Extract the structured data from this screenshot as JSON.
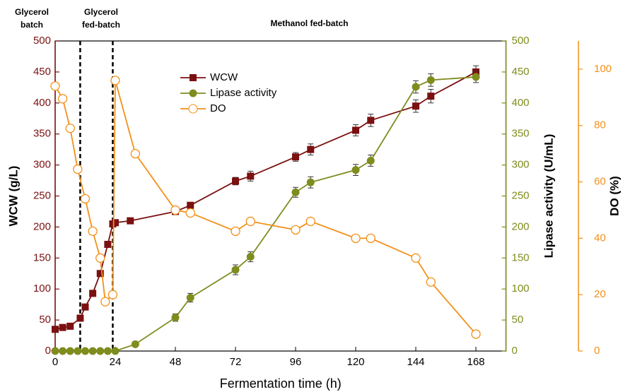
{
  "chart_data": {
    "type": "line",
    "xlabel": "Fermentation time (h)",
    "xlim": [
      0,
      180
    ],
    "xticks": [
      0,
      24,
      48,
      72,
      96,
      120,
      144,
      168
    ],
    "ylabel": "WCW (g/L)",
    "ylim": [
      0,
      500
    ],
    "yticks": [
      0,
      50,
      100,
      150,
      200,
      250,
      300,
      350,
      400,
      450,
      500
    ],
    "y2label": "Lipase activity (U/mL)",
    "y2lim": [
      0,
      500
    ],
    "y2ticks": [
      0,
      50,
      100,
      150,
      200,
      250,
      300,
      350,
      400,
      450,
      500
    ],
    "y3label": "DO (%)",
    "y3lim": [
      0,
      110
    ],
    "y3ticks": [
      0,
      20,
      40,
      60,
      80,
      100
    ],
    "legend": "upper center",
    "phases": [
      {
        "label": [
          "Glycerol",
          "batch"
        ],
        "start": 0
      },
      {
        "label": [
          "Glycerol",
          "fed-batch"
        ],
        "start": 10
      },
      {
        "label": [
          "Methanol fed-batch"
        ],
        "start": 23
      }
    ],
    "series": [
      {
        "name": "WCW",
        "color": "#7b1010",
        "marker": "square",
        "axis": "y",
        "x": [
          0,
          3,
          6,
          10,
          12,
          15,
          18,
          21,
          23,
          24,
          30,
          48,
          54,
          72,
          78,
          96,
          102,
          120,
          126,
          144,
          150,
          168
        ],
        "values": [
          35,
          38,
          40,
          53,
          71,
          93,
          125,
          172,
          205,
          207,
          210,
          225,
          235,
          274,
          282,
          313,
          325,
          356,
          372,
          395,
          411,
          450
        ],
        "errors": [
          null,
          null,
          null,
          null,
          null,
          null,
          null,
          null,
          null,
          null,
          null,
          null,
          null,
          6,
          8,
          7,
          9,
          9,
          10,
          10,
          11,
          10
        ]
      },
      {
        "name": "Lipase activity",
        "color": "#7f8c1e",
        "marker": "circle",
        "axis": "y2",
        "x": [
          0,
          3,
          6,
          9,
          12,
          15,
          18,
          21,
          24,
          32,
          48,
          54,
          72,
          78,
          96,
          102,
          120,
          126,
          144,
          150,
          168
        ],
        "values": [
          0,
          0,
          0,
          0,
          0,
          0,
          0,
          0,
          0,
          11,
          54,
          86,
          131,
          152,
          256,
          272,
          292,
          307,
          426,
          437,
          442
        ],
        "errors": [
          null,
          null,
          null,
          null,
          null,
          null,
          null,
          null,
          null,
          null,
          6,
          7,
          8,
          8,
          8,
          9,
          9,
          9,
          10,
          10,
          9
        ]
      },
      {
        "name": "DO",
        "color": "#f39019",
        "marker": "open-circle",
        "axis": "y3",
        "x": [
          0,
          3,
          6,
          9,
          12,
          15,
          18,
          20,
          23,
          24,
          32,
          48,
          54,
          72,
          78,
          96,
          102,
          120,
          126,
          144,
          150,
          168
        ],
        "values": [
          94,
          89.5,
          79,
          64.5,
          54,
          42.5,
          33,
          17.5,
          20,
          96,
          70,
          50,
          49,
          42.5,
          46,
          43,
          46,
          40,
          40,
          33,
          24.5,
          6
        ]
      }
    ]
  }
}
